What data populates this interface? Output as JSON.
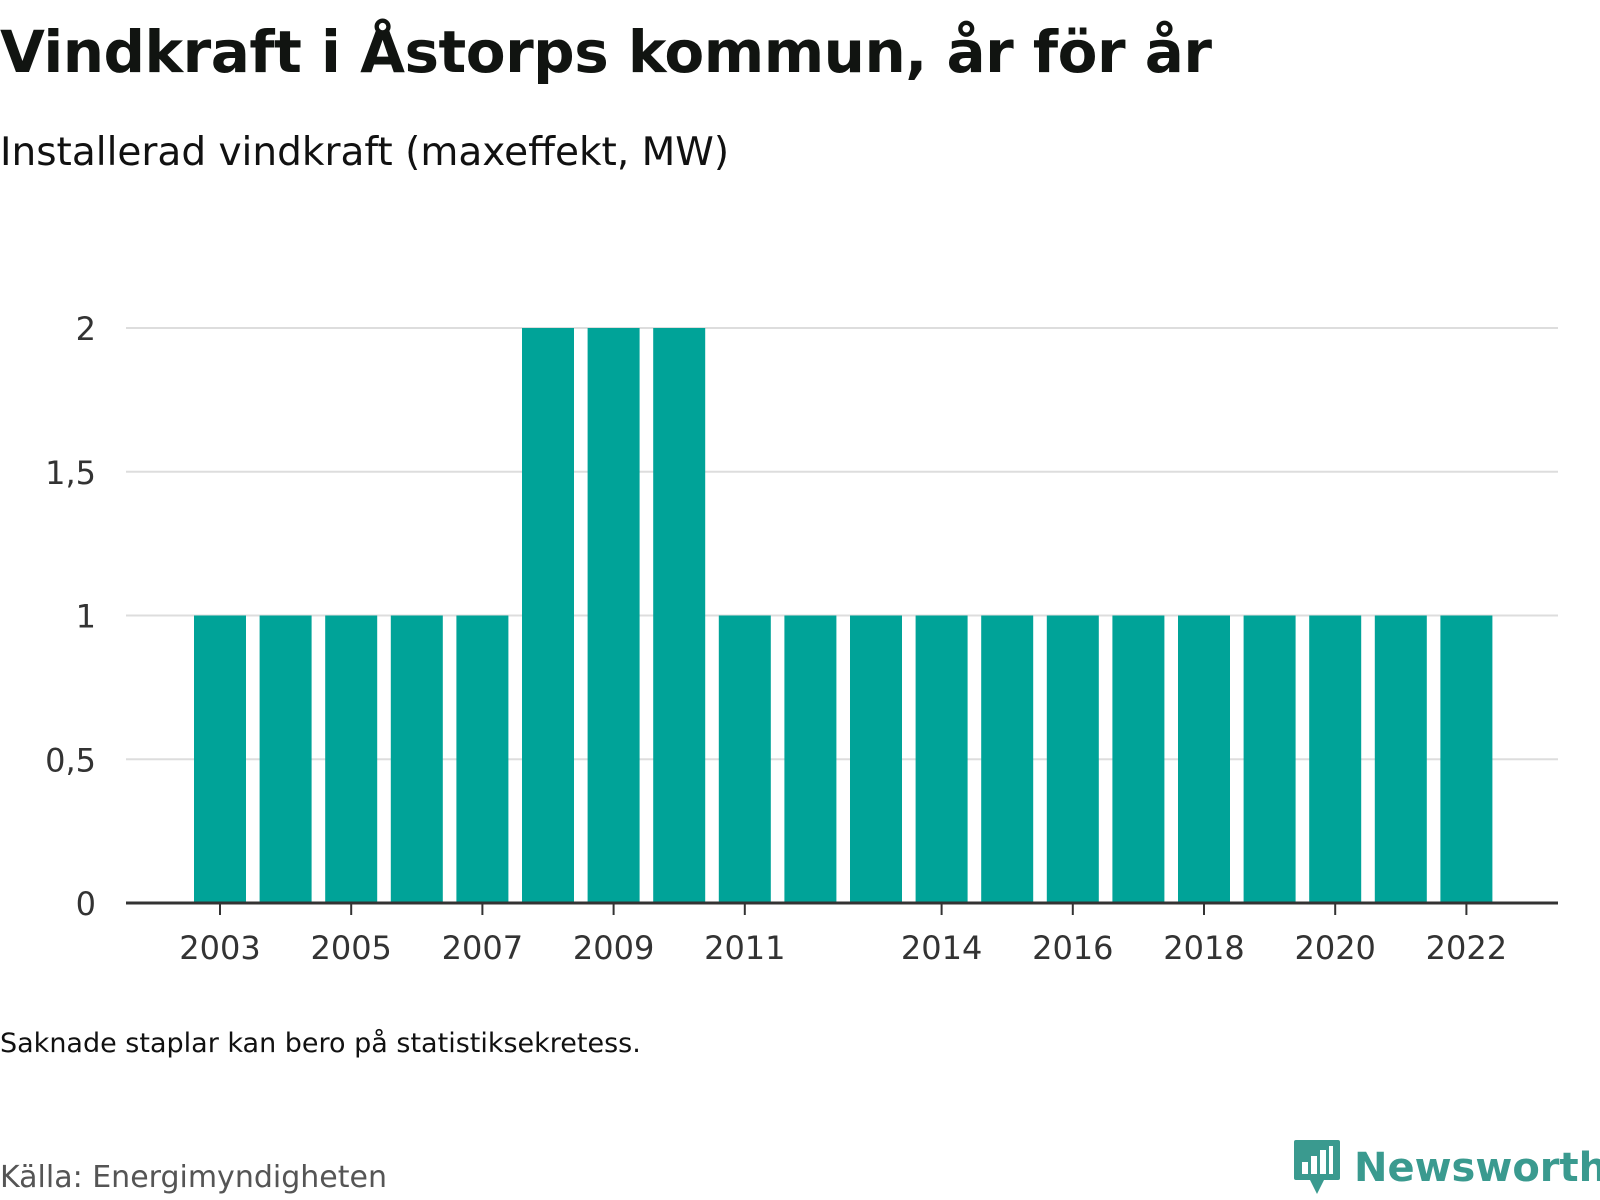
{
  "header": {
    "title": "Vindkraft i Åstorps kommun, år för år",
    "subtitle": "Installerad vindkraft (maxeffekt, MW)"
  },
  "footer": {
    "note": "Saknade staplar kan bero på statistiksekretess.",
    "source": "Källa: Energimyndigheten",
    "brand": "Newsworthy"
  },
  "colors": {
    "bar": "#00a398",
    "grid": "#dddddd",
    "axis": "#333333",
    "brand": "#3a9a8f"
  },
  "chart_data": {
    "type": "bar",
    "categories": [
      "2003",
      "2004",
      "2005",
      "2006",
      "2007",
      "2008",
      "2009",
      "2010",
      "2011",
      "2012",
      "2013",
      "2014",
      "2015",
      "2016",
      "2017",
      "2018",
      "2019",
      "2020",
      "2021",
      "2022"
    ],
    "values": [
      1,
      1,
      1,
      1,
      1,
      2,
      2,
      2,
      1,
      1,
      1,
      1,
      1,
      1,
      1,
      1,
      1,
      1,
      1,
      1
    ],
    "xtick_labels": [
      "2003",
      "2005",
      "2007",
      "2009",
      "2011",
      "2014",
      "2016",
      "2018",
      "2020",
      "2022"
    ],
    "yticks": [
      0,
      0.5,
      1,
      1.5,
      2
    ],
    "ytick_labels": [
      "0",
      "0,5",
      "1",
      "1,5",
      "2"
    ],
    "ylim": [
      0,
      2
    ],
    "grid": true,
    "xlabel": "",
    "ylabel": ""
  }
}
